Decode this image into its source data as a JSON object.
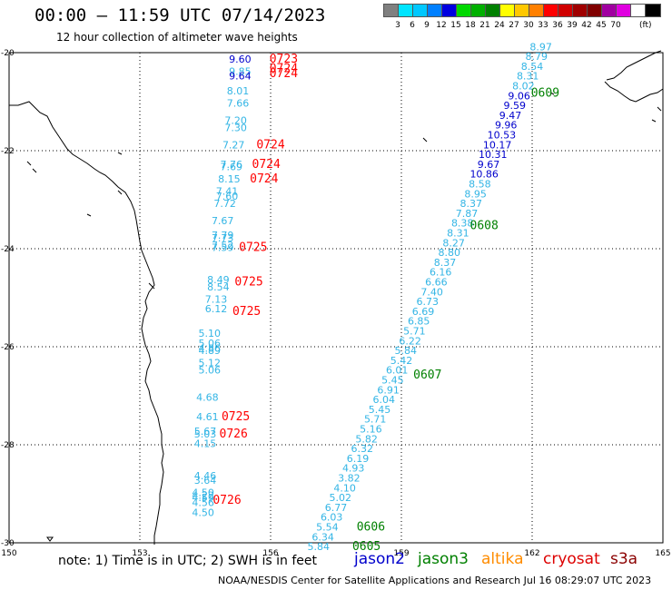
{
  "header": {
    "title": "00:00 — 11:59 UTC 07/14/2023",
    "subtitle": "12 hour collection of altimeter wave heights"
  },
  "legend": {
    "colors": [
      "#808080",
      "#00e5ff",
      "#00c8ff",
      "#0080ff",
      "#0000e0",
      "#00d800",
      "#00b000",
      "#008000",
      "#ffff00",
      "#ffc800",
      "#ff8000",
      "#ff0000",
      "#d00000",
      "#a00000",
      "#800000",
      "#a000a0",
      "#e000e0",
      "#ffffff",
      "#000000"
    ],
    "labels": [
      "3",
      "6",
      "9",
      "12",
      "15",
      "18",
      "21",
      "24",
      "27",
      "30",
      "33",
      "36",
      "39",
      "42",
      "45",
      "70"
    ],
    "unit": "(ft)"
  },
  "axes": {
    "x_ticks": [
      "150",
      "153",
      "156",
      "159",
      "162",
      "165"
    ],
    "y_ticks": [
      "-20",
      "-22",
      "-24",
      "-26",
      "-28",
      "-30"
    ]
  },
  "observations": [
    {
      "v": "8.97",
      "c": "#33b5e5",
      "lon": 162.2,
      "lat": -19.95
    },
    {
      "v": "8.79",
      "c": "#33b5e5",
      "lon": 162.1,
      "lat": -20.15
    },
    {
      "v": "8.54",
      "c": "#33b5e5",
      "lon": 162.0,
      "lat": -20.35
    },
    {
      "v": "8.31",
      "c": "#33b5e5",
      "lon": 161.9,
      "lat": -20.55
    },
    {
      "v": "8.02",
      "c": "#33b5e5",
      "lon": 161.8,
      "lat": -20.75
    },
    {
      "v": "9.06",
      "c": "#0000cc",
      "lon": 161.7,
      "lat": -20.95
    },
    {
      "v": "9.59",
      "c": "#0000cc",
      "lon": 161.6,
      "lat": -21.15
    },
    {
      "v": "9.47",
      "c": "#0000cc",
      "lon": 161.5,
      "lat": -21.35
    },
    {
      "v": "9.96",
      "c": "#0000cc",
      "lon": 161.4,
      "lat": -21.55
    },
    {
      "v": "10.53",
      "c": "#0000cc",
      "lon": 161.3,
      "lat": -21.75
    },
    {
      "v": "10.17",
      "c": "#0000cc",
      "lon": 161.2,
      "lat": -21.95
    },
    {
      "v": "10.31",
      "c": "#0000cc",
      "lon": 161.1,
      "lat": -22.15
    },
    {
      "v": "9.67",
      "c": "#0000cc",
      "lon": 161.0,
      "lat": -22.35
    },
    {
      "v": "10.86",
      "c": "#0000cc",
      "lon": 160.9,
      "lat": -22.55
    },
    {
      "v": "8.58",
      "c": "#33b5e5",
      "lon": 160.8,
      "lat": -22.75
    },
    {
      "v": "8.95",
      "c": "#33b5e5",
      "lon": 160.7,
      "lat": -22.95
    },
    {
      "v": "8.37",
      "c": "#33b5e5",
      "lon": 160.6,
      "lat": -23.15
    },
    {
      "v": "7.87",
      "c": "#33b5e5",
      "lon": 160.5,
      "lat": -23.35
    },
    {
      "v": "8.38",
      "c": "#33b5e5",
      "lon": 160.4,
      "lat": -23.55
    },
    {
      "v": "8.31",
      "c": "#33b5e5",
      "lon": 160.3,
      "lat": -23.75
    },
    {
      "v": "8.27",
      "c": "#33b5e5",
      "lon": 160.2,
      "lat": -23.95
    },
    {
      "v": "8.80",
      "c": "#33b5e5",
      "lon": 160.1,
      "lat": -24.15
    },
    {
      "v": "8.37",
      "c": "#33b5e5",
      "lon": 160.0,
      "lat": -24.35
    },
    {
      "v": "6.16",
      "c": "#33b5e5",
      "lon": 159.9,
      "lat": -24.55
    },
    {
      "v": "6.66",
      "c": "#33b5e5",
      "lon": 159.8,
      "lat": -24.75
    },
    {
      "v": "7.40",
      "c": "#33b5e5",
      "lon": 159.7,
      "lat": -24.95
    },
    {
      "v": "6.73",
      "c": "#33b5e5",
      "lon": 159.6,
      "lat": -25.15
    },
    {
      "v": "6.69",
      "c": "#33b5e5",
      "lon": 159.5,
      "lat": -25.35
    },
    {
      "v": "6.85",
      "c": "#33b5e5",
      "lon": 159.4,
      "lat": -25.55
    },
    {
      "v": "5.71",
      "c": "#33b5e5",
      "lon": 159.3,
      "lat": -25.75
    },
    {
      "v": "6.22",
      "c": "#33b5e5",
      "lon": 159.2,
      "lat": -25.95
    },
    {
      "v": "5.84",
      "c": "#33b5e5",
      "lon": 159.1,
      "lat": -26.15
    },
    {
      "v": "5.42",
      "c": "#33b5e5",
      "lon": 159.0,
      "lat": -26.35
    },
    {
      "v": "6.01",
      "c": "#33b5e5",
      "lon": 158.9,
      "lat": -26.55
    },
    {
      "v": "5.45",
      "c": "#33b5e5",
      "lon": 158.8,
      "lat": -26.75
    },
    {
      "v": "6.91",
      "c": "#33b5e5",
      "lon": 158.7,
      "lat": -26.95
    },
    {
      "v": "6.04",
      "c": "#33b5e5",
      "lon": 158.6,
      "lat": -27.15
    },
    {
      "v": "5.45",
      "c": "#33b5e5",
      "lon": 158.5,
      "lat": -27.35
    },
    {
      "v": "5.71",
      "c": "#33b5e5",
      "lon": 158.4,
      "lat": -27.55
    },
    {
      "v": "5.16",
      "c": "#33b5e5",
      "lon": 158.3,
      "lat": -27.75
    },
    {
      "v": "5.82",
      "c": "#33b5e5",
      "lon": 158.2,
      "lat": -27.95
    },
    {
      "v": "6.32",
      "c": "#33b5e5",
      "lon": 158.1,
      "lat": -28.15
    },
    {
      "v": "6.19",
      "c": "#33b5e5",
      "lon": 158.0,
      "lat": -28.35
    },
    {
      "v": "4.93",
      "c": "#33b5e5",
      "lon": 157.9,
      "lat": -28.55
    },
    {
      "v": "3.82",
      "c": "#33b5e5",
      "lon": 157.8,
      "lat": -28.75
    },
    {
      "v": "4.10",
      "c": "#33b5e5",
      "lon": 157.7,
      "lat": -28.95
    },
    {
      "v": "5.02",
      "c": "#33b5e5",
      "lon": 157.6,
      "lat": -29.15
    },
    {
      "v": "6.77",
      "c": "#33b5e5",
      "lon": 157.5,
      "lat": -29.35
    },
    {
      "v": "6.03",
      "c": "#33b5e5",
      "lon": 157.4,
      "lat": -29.55
    },
    {
      "v": "5.54",
      "c": "#33b5e5",
      "lon": 157.3,
      "lat": -29.75
    },
    {
      "v": "6.34",
      "c": "#33b5e5",
      "lon": 157.2,
      "lat": -29.95
    },
    {
      "v": "5.84",
      "c": "#33b5e5",
      "lon": 157.1,
      "lat": -30.15
    },
    {
      "v": "9.60",
      "c": "#0000cc",
      "lon": 155.3,
      "lat": -20.2
    },
    {
      "v": "9.85",
      "c": "#33b5e5",
      "lon": 155.3,
      "lat": -20.45
    },
    {
      "v": "9.64",
      "c": "#0000cc",
      "lon": 155.3,
      "lat": -20.55
    },
    {
      "v": "8.01",
      "c": "#33b5e5",
      "lon": 155.25,
      "lat": -20.85
    },
    {
      "v": "7.66",
      "c": "#33b5e5",
      "lon": 155.25,
      "lat": -21.1
    },
    {
      "v": "7.20",
      "c": "#33b5e5",
      "lon": 155.2,
      "lat": -21.45
    },
    {
      "v": "7.30",
      "c": "#33b5e5",
      "lon": 155.2,
      "lat": -21.6
    },
    {
      "v": "7.27",
      "c": "#33b5e5",
      "lon": 155.15,
      "lat": -21.95
    },
    {
      "v": "7.76",
      "c": "#33b5e5",
      "lon": 155.1,
      "lat": -22.35
    },
    {
      "v": "7.69",
      "c": "#33b5e5",
      "lon": 155.1,
      "lat": -22.4
    },
    {
      "v": "8.15",
      "c": "#33b5e5",
      "lon": 155.05,
      "lat": -22.65
    },
    {
      "v": "7.41",
      "c": "#33b5e5",
      "lon": 155.0,
      "lat": -22.9
    },
    {
      "v": "7.60",
      "c": "#33b5e5",
      "lon": 155.0,
      "lat": -23.0
    },
    {
      "v": "7.72",
      "c": "#33b5e5",
      "lon": 154.95,
      "lat": -23.15
    },
    {
      "v": "7.67",
      "c": "#33b5e5",
      "lon": 154.9,
      "lat": -23.5
    },
    {
      "v": "7.79",
      "c": "#33b5e5",
      "lon": 154.9,
      "lat": -23.8
    },
    {
      "v": "7.73",
      "c": "#33b5e5",
      "lon": 154.9,
      "lat": -23.85
    },
    {
      "v": "7.52",
      "c": "#33b5e5",
      "lon": 154.9,
      "lat": -24.0
    },
    {
      "v": "7.59",
      "c": "#33b5e5",
      "lon": 154.9,
      "lat": -24.05
    },
    {
      "v": "8.49",
      "c": "#33b5e5",
      "lon": 154.8,
      "lat": -24.7
    },
    {
      "v": "8.54",
      "c": "#33b5e5",
      "lon": 154.8,
      "lat": -24.85
    },
    {
      "v": "7.13",
      "c": "#33b5e5",
      "lon": 154.75,
      "lat": -25.1
    },
    {
      "v": "6.12",
      "c": "#33b5e5",
      "lon": 154.75,
      "lat": -25.3
    },
    {
      "v": "5.10",
      "c": "#33b5e5",
      "lon": 154.6,
      "lat": -25.8
    },
    {
      "v": "5.06",
      "c": "#33b5e5",
      "lon": 154.6,
      "lat": -26.0
    },
    {
      "v": "4.86",
      "c": "#33b5e5",
      "lon": 154.6,
      "lat": -26.1
    },
    {
      "v": "4.89",
      "c": "#33b5e5",
      "lon": 154.6,
      "lat": -26.15
    },
    {
      "v": "5.12",
      "c": "#33b5e5",
      "lon": 154.6,
      "lat": -26.4
    },
    {
      "v": "5.06",
      "c": "#33b5e5",
      "lon": 154.6,
      "lat": -26.55
    },
    {
      "v": "4.68",
      "c": "#33b5e5",
      "lon": 154.55,
      "lat": -27.1
    },
    {
      "v": "4.61",
      "c": "#33b5e5",
      "lon": 154.55,
      "lat": -27.5
    },
    {
      "v": "5.67",
      "c": "#33b5e5",
      "lon": 154.5,
      "lat": -27.8
    },
    {
      "v": "5.03",
      "c": "#33b5e5",
      "lon": 154.5,
      "lat": -27.85
    },
    {
      "v": "4.15",
      "c": "#33b5e5",
      "lon": 154.5,
      "lat": -28.05
    },
    {
      "v": "4.46",
      "c": "#33b5e5",
      "lon": 154.5,
      "lat": -28.7
    },
    {
      "v": "3.64",
      "c": "#33b5e5",
      "lon": 154.5,
      "lat": -28.8
    },
    {
      "v": "4.50",
      "c": "#33b5e5",
      "lon": 154.45,
      "lat": -29.05
    },
    {
      "v": "4.22",
      "c": "#33b5e5",
      "lon": 154.45,
      "lat": -29.1
    },
    {
      "v": "4.59",
      "c": "#33b5e5",
      "lon": 154.45,
      "lat": -29.15
    },
    {
      "v": "4.56",
      "c": "#33b5e5",
      "lon": 154.45,
      "lat": -29.25
    },
    {
      "v": "4.50",
      "c": "#33b5e5",
      "lon": 154.45,
      "lat": -29.45
    }
  ],
  "date_tags": [
    {
      "v": "0609",
      "c": "#008000",
      "lon": 162.3,
      "lat": -20.9
    },
    {
      "v": "0608",
      "c": "#008000",
      "lon": 160.9,
      "lat": -23.6
    },
    {
      "v": "0607",
      "c": "#008000",
      "lon": 159.6,
      "lat": -26.65
    },
    {
      "v": "0606",
      "c": "#008000",
      "lon": 158.3,
      "lat": -29.75
    },
    {
      "v": "0605",
      "c": "#008000",
      "lon": 158.2,
      "lat": -30.15
    },
    {
      "v": "0723",
      "c": "#ff0000",
      "lon": 156.3,
      "lat": -20.2
    },
    {
      "v": "0724",
      "c": "#ff0000",
      "lon": 156.3,
      "lat": -20.4
    },
    {
      "v": "0724",
      "c": "#ff0000",
      "lon": 156.3,
      "lat": -20.5
    },
    {
      "v": "0724",
      "c": "#ff0000",
      "lon": 156.0,
      "lat": -21.95
    },
    {
      "v": "0724",
      "c": "#ff0000",
      "lon": 155.9,
      "lat": -22.35
    },
    {
      "v": "0724",
      "c": "#ff0000",
      "lon": 155.85,
      "lat": -22.65
    },
    {
      "v": "0725",
      "c": "#ff0000",
      "lon": 155.6,
      "lat": -24.05
    },
    {
      "v": "0725",
      "c": "#ff0000",
      "lon": 155.5,
      "lat": -24.75
    },
    {
      "v": "0725",
      "c": "#ff0000",
      "lon": 155.45,
      "lat": -25.35
    },
    {
      "v": "0725",
      "c": "#ff0000",
      "lon": 155.2,
      "lat": -27.5
    },
    {
      "v": "0726",
      "c": "#ff0000",
      "lon": 155.15,
      "lat": -27.85
    },
    {
      "v": "0726",
      "c": "#ff0000",
      "lon": 155.0,
      "lat": -29.2
    }
  ],
  "footer": {
    "note": "note:  1) Time is in UTC;  2) SWH is in feet",
    "credit": "NOAA/NESDIS Center for Satellite Applications and Research     Jul 16 08:29:07 UTC 2023",
    "missions": [
      {
        "name": "jason2",
        "color": "#0000cc"
      },
      {
        "name": "jason3",
        "color": "#008000"
      },
      {
        "name": "altika",
        "color": "#ff8c00"
      },
      {
        "name": "cryosat",
        "color": "#dd0000"
      },
      {
        "name": "s3a",
        "color": "#8b0000"
      }
    ]
  }
}
